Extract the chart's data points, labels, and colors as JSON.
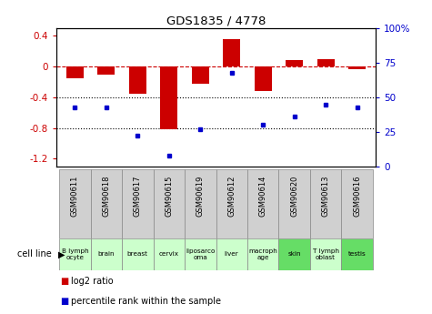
{
  "title": "GDS1835 / 4778",
  "samples": [
    "GSM90611",
    "GSM90618",
    "GSM90617",
    "GSM90615",
    "GSM90619",
    "GSM90612",
    "GSM90614",
    "GSM90620",
    "GSM90613",
    "GSM90616"
  ],
  "cell_lines": [
    "B lymph\nocyte",
    "brain",
    "breast",
    "cervix",
    "liposarco\noma",
    "liver",
    "macroph\nage",
    "skin",
    "T lymph\noblast",
    "testis"
  ],
  "cell_line_colors": [
    "#ccffcc",
    "#ccffcc",
    "#ccffcc",
    "#ccffcc",
    "#ccffcc",
    "#ccffcc",
    "#ccffcc",
    "#66dd66",
    "#ccffcc",
    "#66dd66"
  ],
  "log2_ratio": [
    -0.15,
    -0.1,
    -0.35,
    -0.82,
    -0.22,
    0.36,
    -0.32,
    0.09,
    0.1,
    -0.03
  ],
  "percentile_rank": [
    43,
    43,
    22,
    8,
    27,
    68,
    30,
    36,
    45,
    43
  ],
  "bar_color": "#cc0000",
  "dot_color": "#0000cc",
  "ylim_left": [
    -1.3,
    0.5
  ],
  "ylim_right": [
    0,
    100
  ],
  "hline_zero_color": "#cc0000",
  "hline_dotted_color": "black",
  "hline_dotted_values": [
    -0.4,
    -0.8
  ],
  "left_ticks": [
    -1.2,
    -0.8,
    -0.4,
    0,
    0.4
  ],
  "right_tick_values": [
    0,
    25,
    50,
    75,
    100
  ],
  "right_tick_labels": [
    "0",
    "25",
    "50",
    "75",
    "100%"
  ],
  "legend_red_label": "log2 ratio",
  "legend_blue_label": "percentile rank within the sample",
  "cell_line_label": "cell line"
}
